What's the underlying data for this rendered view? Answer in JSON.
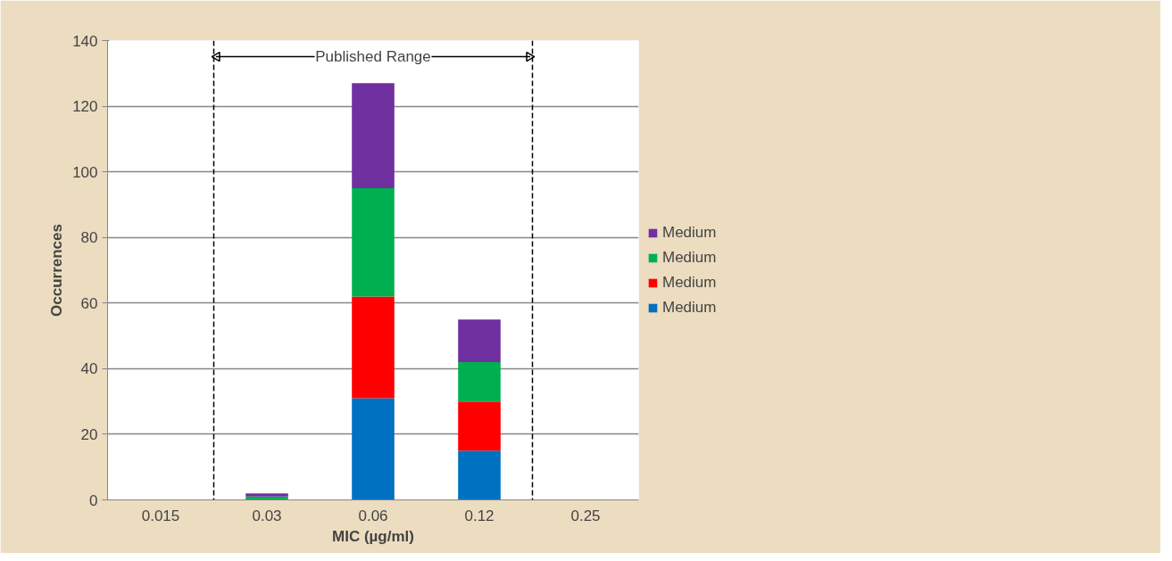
{
  "chart_data": {
    "type": "bar",
    "stacked": true,
    "xlabel": "MIC (µg/ml)",
    "ylabel": "Occurrences",
    "categories": [
      "0.015",
      "0.03",
      "0.06",
      "0.12",
      "0.25"
    ],
    "series": [
      {
        "name": "Medium",
        "color": "#0070c0",
        "values": [
          0,
          0,
          31,
          15,
          0
        ]
      },
      {
        "name": "Medium",
        "color": "#ff0000",
        "values": [
          0,
          0,
          31,
          15,
          0
        ]
      },
      {
        "name": "Medium",
        "color": "#00b050",
        "values": [
          0,
          1,
          33,
          12,
          0
        ]
      },
      {
        "name": "Medium",
        "color": "#7030a0",
        "values": [
          0,
          1,
          32,
          13,
          0
        ]
      }
    ],
    "ylim": [
      0,
      140
    ],
    "yticks": [
      0,
      20,
      40,
      60,
      80,
      100,
      120,
      140
    ],
    "grid": "y",
    "legend": "right",
    "annotations": [
      "Published Range"
    ]
  }
}
